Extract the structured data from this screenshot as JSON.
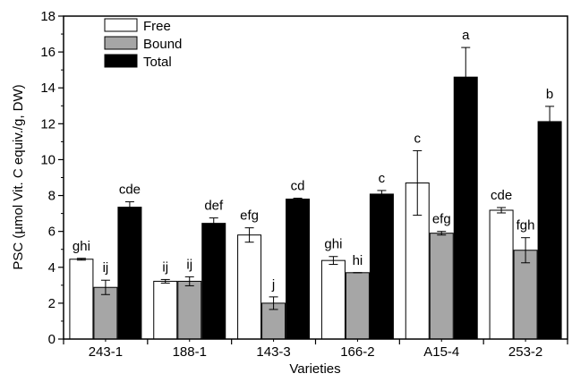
{
  "chart_data": {
    "type": "bar",
    "xlabel": "Varieties",
    "ylabel": "PSC (µmol Vit. C equiv./g, DW)",
    "ylim": [
      0,
      18
    ],
    "yticks": [
      0,
      2,
      4,
      6,
      8,
      10,
      12,
      14,
      16,
      18
    ],
    "grid": false,
    "legend_position": "top-left",
    "categories": [
      "243-1",
      "188-1",
      "143-3",
      "166-2",
      "A15-4",
      "253-2"
    ],
    "series": [
      {
        "name": "Free",
        "color": "#ffffff",
        "values": [
          4.45,
          3.22,
          5.8,
          4.38,
          8.7,
          7.18
        ],
        "errors": [
          0.05,
          0.1,
          0.4,
          0.22,
          1.8,
          0.15
        ],
        "labels": [
          "ghi",
          "ij",
          "efg",
          "ghi",
          "c",
          "cde"
        ]
      },
      {
        "name": "Bound",
        "color": "#a6a6a6",
        "values": [
          2.88,
          3.22,
          2.0,
          3.7,
          5.9,
          4.95
        ],
        "errors": [
          0.4,
          0.25,
          0.35,
          0.0,
          0.1,
          0.7
        ],
        "labels": [
          "ij",
          "ij",
          "j",
          "hi",
          "efg",
          "fgh"
        ]
      },
      {
        "name": "Total",
        "color": "#000000",
        "values": [
          7.35,
          6.45,
          7.8,
          8.08,
          14.6,
          12.12
        ],
        "errors": [
          0.3,
          0.3,
          0.05,
          0.2,
          1.65,
          0.85
        ],
        "labels": [
          "cde",
          "def",
          "cd",
          "c",
          "a",
          "b"
        ]
      }
    ]
  }
}
